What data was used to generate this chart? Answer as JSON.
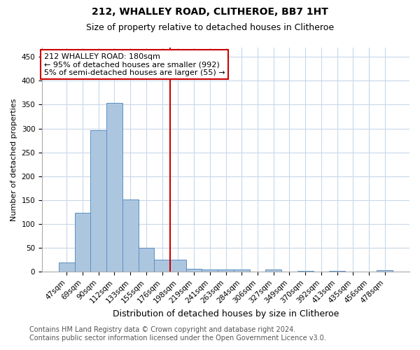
{
  "title": "212, WHALLEY ROAD, CLITHEROE, BB7 1HT",
  "subtitle": "Size of property relative to detached houses in Clitheroe",
  "xlabel": "Distribution of detached houses by size in Clitheroe",
  "ylabel": "Number of detached properties",
  "bar_labels": [
    "47sqm",
    "69sqm",
    "90sqm",
    "112sqm",
    "133sqm",
    "155sqm",
    "176sqm",
    "198sqm",
    "219sqm",
    "241sqm",
    "263sqm",
    "284sqm",
    "306sqm",
    "327sqm",
    "349sqm",
    "370sqm",
    "392sqm",
    "413sqm",
    "435sqm",
    "456sqm",
    "478sqm"
  ],
  "bar_values": [
    20,
    124,
    297,
    354,
    151,
    50,
    25,
    25,
    7,
    5,
    5,
    5,
    0,
    5,
    0,
    2,
    0,
    2,
    0,
    0,
    4
  ],
  "bar_color": "#adc6e0",
  "bar_edge_color": "#5a8fc0",
  "vline_x": 6.5,
  "vline_color": "#cc0000",
  "annotation_line1": "212 WHALLEY ROAD: 180sqm",
  "annotation_line2": "← 95% of detached houses are smaller (992)",
  "annotation_line3": "5% of semi-detached houses are larger (55) →",
  "annotation_box_color": "#cc0000",
  "ylim": [
    0,
    470
  ],
  "yticks": [
    0,
    50,
    100,
    150,
    200,
    250,
    300,
    350,
    400,
    450
  ],
  "footer_line1": "Contains HM Land Registry data © Crown copyright and database right 2024.",
  "footer_line2": "Contains public sector information licensed under the Open Government Licence v3.0.",
  "bg_color": "#ffffff",
  "grid_color": "#c8d8e8",
  "title_fontsize": 10,
  "subtitle_fontsize": 9,
  "xlabel_fontsize": 9,
  "ylabel_fontsize": 8,
  "tick_fontsize": 7.5,
  "footer_fontsize": 7
}
